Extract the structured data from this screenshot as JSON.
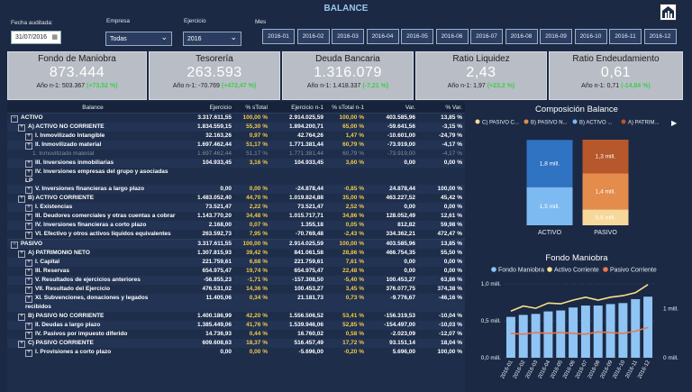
{
  "header": {
    "title": "BALANCE"
  },
  "filters": [
    {
      "label": "Fecha auditada:",
      "value": "31/07/2016"
    },
    {
      "label": "Empresa",
      "value": "Todas"
    },
    {
      "label": "Ejercicio",
      "value": "2016"
    }
  ],
  "months": {
    "label": "Mes",
    "items": [
      "2016-01",
      "2016-02",
      "2016-03",
      "2016-04",
      "2016-05",
      "2016-06",
      "2016-07",
      "2016-08",
      "2016-09",
      "2016-10",
      "2016-11",
      "2016-12"
    ]
  },
  "kpis": [
    {
      "title": "Fondo de Maniobra",
      "value": "873.444",
      "previous": "Año n-1: 503.367",
      "change": "(+73,52 %)"
    },
    {
      "title": "Tesorería",
      "value": "263.593",
      "previous": "Año n-1: -70.769",
      "change": "(+472,47 %)"
    },
    {
      "title": "Deuda Bancaria",
      "value": "1.316.079",
      "previous": "Año n-1: 1.418.337",
      "change": "(-7,21 %)"
    },
    {
      "title": "Ratio Liquidez",
      "value": "2,43",
      "previous": "Año n-1: 1,97",
      "change": "(+23,2 %)"
    },
    {
      "title": "Ratio Endeudamiento",
      "value": "0,61",
      "previous": "Año n-1: 0,71",
      "change": "(-14,84 %)"
    }
  ],
  "table": {
    "columns": [
      "Balance",
      "Ejercicio",
      "% sTotal",
      "Ejercicio n-1",
      "% sTotal n-1",
      "Var.",
      "% Var."
    ],
    "rows": [
      {
        "label": "ACTIVO",
        "level": 0,
        "values": [
          "3.317.611,55",
          "100,00 %",
          "2.914.025,59",
          "100,00 %",
          "403.585,96",
          "13,85 %"
        ]
      },
      {
        "label": "A) ACTIVO NO CORRIENTE",
        "level": 1,
        "values": [
          "1.834.559,15",
          "55,30 %",
          "1.894.200,71",
          "65,00 %",
          "-59.641,56",
          "-3,15 %"
        ]
      },
      {
        "label": "I. Inmovilizado Intangible",
        "level": 2,
        "values": [
          "32.163,26",
          "0,97 %",
          "42.764,26",
          "1,47 %",
          "-10.601,00",
          "-24,79 %"
        ]
      },
      {
        "label": "II. Inmovilizado material",
        "level": 2,
        "values": [
          "1.697.462,44",
          "51,17 %",
          "1.771.381,44",
          "60,79 %",
          "-73.919,00",
          "-4,17 %"
        ]
      },
      {
        "label": "1. Inmovilizado material",
        "level": 3,
        "muted": true,
        "values": [
          "1.697.462,44",
          "51,17 %",
          "1.771.381,44",
          "60,79 %",
          "-73.919,00",
          "-4,17 %"
        ]
      },
      {
        "label": "III. Inversiones inmobiliarias",
        "level": 2,
        "values": [
          "104.933,45",
          "3,16 %",
          "104.933,45",
          "3,60 %",
          "0,00",
          "0,00 %"
        ]
      },
      {
        "label": "IV. Inversiones empresas del grupo y asociadas LP",
        "level": 2,
        "values": []
      },
      {
        "label": "V. Inversiones financieras a largo plazo",
        "level": 2,
        "values": [
          "0,00",
          "0,00 %",
          "-24.878,44",
          "-0,85 %",
          "24.878,44",
          "100,00 %"
        ]
      },
      {
        "label": "B) ACTIVO CORRIENTE",
        "level": 1,
        "values": [
          "1.483.052,40",
          "44,70 %",
          "1.019.824,88",
          "35,00 %",
          "463.227,52",
          "45,42 %"
        ]
      },
      {
        "label": "I. Existencias",
        "level": 2,
        "values": [
          "73.521,47",
          "2,22 %",
          "73.521,47",
          "2,52 %",
          "0,00",
          "0,00 %"
        ]
      },
      {
        "label": "III. Deudores comerciales y otras cuentas a cobrar",
        "level": 2,
        "values": [
          "1.143.770,20",
          "34,48 %",
          "1.015.717,71",
          "34,86 %",
          "128.052,49",
          "12,61 %"
        ]
      },
      {
        "label": "IV. Inversiones financieras a corto plazo",
        "level": 2,
        "values": [
          "2.168,00",
          "0,07 %",
          "1.355,18",
          "0,05 %",
          "812,82",
          "59,98 %"
        ]
      },
      {
        "label": "VI. Efectivo y otros activos líquidos equivalentes",
        "level": 2,
        "values": [
          "263.592,73",
          "7,95 %",
          "-70.769,48",
          "-2,43 %",
          "334.362,21",
          "472,47 %"
        ]
      },
      {
        "label": "PASIVO",
        "level": 0,
        "values": [
          "3.317.611,55",
          "100,00 %",
          "2.914.025,59",
          "100,00 %",
          "403.585,96",
          "13,85 %"
        ]
      },
      {
        "label": "A) PATRIMONIO NETO",
        "level": 1,
        "values": [
          "1.307.815,93",
          "39,42 %",
          "841.061,58",
          "28,86 %",
          "466.754,35",
          "55,50 %"
        ]
      },
      {
        "label": "I. Capital",
        "level": 2,
        "values": [
          "221.759,61",
          "6,68 %",
          "221.759,61",
          "7,61 %",
          "0,00",
          "0,00 %"
        ]
      },
      {
        "label": "III. Reservas",
        "level": 2,
        "values": [
          "654.975,47",
          "19,74 %",
          "654.975,47",
          "22,48 %",
          "0,00",
          "0,00 %"
        ]
      },
      {
        "label": "V. Resultados de ejercicios anteriores",
        "level": 2,
        "values": [
          "-56.855,23",
          "-1,71 %",
          "-157.308,50",
          "-5,40 %",
          "100.453,27",
          "63,86 %"
        ]
      },
      {
        "label": "VII. Resultado del Ejercicio",
        "level": 2,
        "values": [
          "476.531,02",
          "14,36 %",
          "100.453,27",
          "3,45 %",
          "376.077,75",
          "374,38 %"
        ]
      },
      {
        "label": "XI. Subvenciones, donaciones y legados recibidos",
        "level": 2,
        "values": [
          "11.405,06",
          "0,34 %",
          "21.181,73",
          "0,73 %",
          "-9.776,67",
          "-46,16 %"
        ]
      },
      {
        "label": "B) PASIVO NO CORRIENTE",
        "level": 1,
        "values": [
          "1.400.186,99",
          "42,20 %",
          "1.556.506,52",
          "53,41 %",
          "-156.319,53",
          "-10,04 %"
        ]
      },
      {
        "label": "II. Deudas a largo plazo",
        "level": 2,
        "values": [
          "1.385.449,06",
          "41,76 %",
          "1.539.946,06",
          "52,85 %",
          "-154.497,00",
          "-10,03 %"
        ]
      },
      {
        "label": "IV. Pasivos por impuesto diferido",
        "level": 2,
        "values": [
          "14.736,93",
          "0,44 %",
          "16.760,02",
          "0,58 %",
          "-2.023,09",
          "-12,07 %"
        ]
      },
      {
        "label": "C) PASIVO CORRIENTE",
        "level": 1,
        "values": [
          "609.608,63",
          "18,37 %",
          "516.457,49",
          "17,72 %",
          "93.151,14",
          "18,04 %"
        ]
      },
      {
        "label": "I. Provisiones a corto plazo",
        "level": 2,
        "values": [
          "0,00",
          "0,00 %",
          "-5.696,00",
          "-0,20 %",
          "5.696,00",
          "100,00 %"
        ]
      }
    ]
  },
  "chart_data": [
    {
      "type": "stacked_bar",
      "title": "Composición Balance",
      "categories": [
        "ACTIVO",
        "PASIVO"
      ],
      "series": [
        {
          "name": "C) PASIVO C...",
          "color": "#f6d89a",
          "values": [
            null,
            0.61
          ],
          "value_labels": [
            null,
            "0,6 mill."
          ]
        },
        {
          "name": "B) PASIVO N...",
          "color": "#e38c4c",
          "values": [
            null,
            1.4
          ],
          "value_labels": [
            null,
            "1,4 mill."
          ]
        },
        {
          "name": "B) ACTIVO ...",
          "color": "#7dbaf2",
          "values": [
            1.48,
            null
          ],
          "value_labels": [
            "1,5 mill.",
            null
          ]
        },
        {
          "name": "A) PATRIM...",
          "color": "#b6582c",
          "values": [
            null,
            1.31
          ],
          "value_labels": [
            null,
            "1,3 mill."
          ]
        },
        {
          "color": "#2f73c2",
          "values": [
            1.83,
            null
          ],
          "value_labels": [
            "1,8 mill.",
            null
          ]
        }
      ]
    },
    {
      "type": "combo",
      "title": "Fondo Maniobra",
      "categories": [
        "2016-01",
        "2016-02",
        "2016-03",
        "2016-04",
        "2016-05",
        "2016-06",
        "2016-07",
        "2016-08",
        "2016-09",
        "2016-10",
        "2016-11",
        "2016-12"
      ],
      "series": [
        {
          "name": "Fondo Maniobra",
          "kind": "bar",
          "axis": "y2",
          "color": "#8fc4f5",
          "values": [
            0.83,
            0.87,
            0.89,
            0.94,
            0.96,
            1.02,
            1.06,
            1.06,
            1.09,
            1.11,
            1.19,
            1.24
          ]
        },
        {
          "name": "Activo Corriente",
          "kind": "line",
          "color": "#f7e08c",
          "values": [
            0.63,
            0.7,
            0.67,
            0.74,
            0.73,
            0.78,
            0.82,
            0.78,
            0.82,
            0.84,
            0.88,
            0.99
          ]
        },
        {
          "name": "Pasivo Corriente",
          "kind": "line",
          "color": "#e8784a",
          "values": [
            0.33,
            0.32,
            0.34,
            0.33,
            0.34,
            0.33,
            0.32,
            0.35,
            0.34,
            0.33,
            0.36,
            0.41
          ]
        }
      ],
      "ylim": [
        0,
        1.0
      ],
      "yticks": [
        {
          "value": 0,
          "label": "0,0 mill."
        },
        {
          "value": 0.5,
          "label": "0,5 mill."
        },
        {
          "value": 1.0,
          "label": "1,0 mill."
        }
      ],
      "y2lim": [
        0,
        1.5
      ],
      "y2ticks": [
        {
          "value": 0,
          "label": "0 mill."
        },
        {
          "value": 1,
          "label": "1 mill."
        }
      ],
      "grid": true
    }
  ]
}
